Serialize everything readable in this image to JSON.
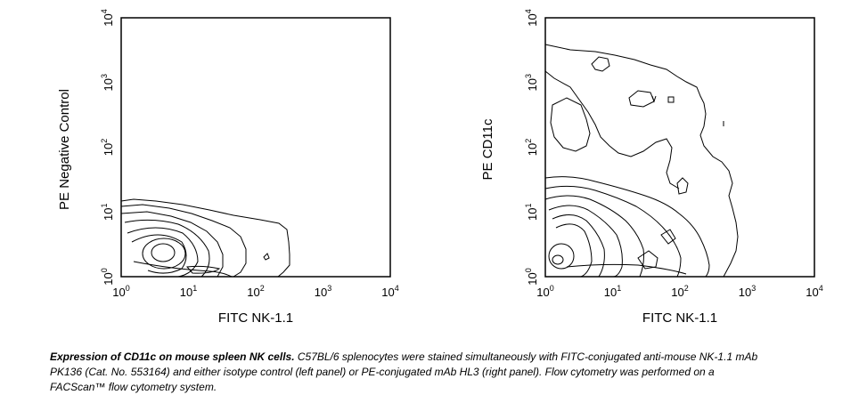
{
  "chart_data": [
    {
      "type": "contour",
      "xlabel": "FITC NK-1.1",
      "ylabel": "PE Negative Control",
      "xscale": "log",
      "yscale": "log",
      "xlim": [
        1,
        10000
      ],
      "ylim": [
        1,
        10000
      ],
      "x_ticks": [
        {
          "base": "10",
          "exp": "0"
        },
        {
          "base": "10",
          "exp": "1"
        },
        {
          "base": "10",
          "exp": "2"
        },
        {
          "base": "10",
          "exp": "3"
        },
        {
          "base": "10",
          "exp": "4"
        }
      ],
      "y_ticks": [
        {
          "base": "10",
          "exp": "0"
        },
        {
          "base": "10",
          "exp": "1"
        },
        {
          "base": "10",
          "exp": "2"
        },
        {
          "base": "10",
          "exp": "3"
        },
        {
          "base": "10",
          "exp": "4"
        }
      ],
      "clusters": [
        {
          "x": 4,
          "y": 1.8
        },
        {
          "x": 40,
          "y": 1.5
        }
      ]
    },
    {
      "type": "contour",
      "xlabel": "FITC NK-1.1",
      "ylabel": "PE CD11c",
      "xscale": "log",
      "yscale": "log",
      "xlim": [
        1,
        10000
      ],
      "ylim": [
        1,
        10000
      ],
      "x_ticks": [
        {
          "base": "10",
          "exp": "0"
        },
        {
          "base": "10",
          "exp": "1"
        },
        {
          "base": "10",
          "exp": "2"
        },
        {
          "base": "10",
          "exp": "3"
        },
        {
          "base": "10",
          "exp": "4"
        }
      ],
      "y_ticks": [
        {
          "base": "10",
          "exp": "0"
        },
        {
          "base": "10",
          "exp": "1"
        },
        {
          "base": "10",
          "exp": "2"
        },
        {
          "base": "10",
          "exp": "3"
        },
        {
          "base": "10",
          "exp": "4"
        }
      ],
      "clusters": [
        {
          "x": 1.3,
          "y": 1.3
        },
        {
          "x": 6,
          "y": 2.5
        },
        {
          "x": 40,
          "y": 1.5
        },
        {
          "x": 150,
          "y": 5
        },
        {
          "x": 3.5,
          "y": 500
        }
      ]
    }
  ],
  "caption": {
    "title": "Expression of CD11c on mouse spleen NK cells.",
    "body": "C57BL/6 splenocytes were stained simultaneously with FITC-conjugated anti-mouse NK-1.1 mAb PK136 (Cat. No. 553164) and either isotype control (left panel) or PE-conjugated mAb HL3 (right panel). Flow cytometry was performed on a FACScan™ flow cytometry system."
  }
}
